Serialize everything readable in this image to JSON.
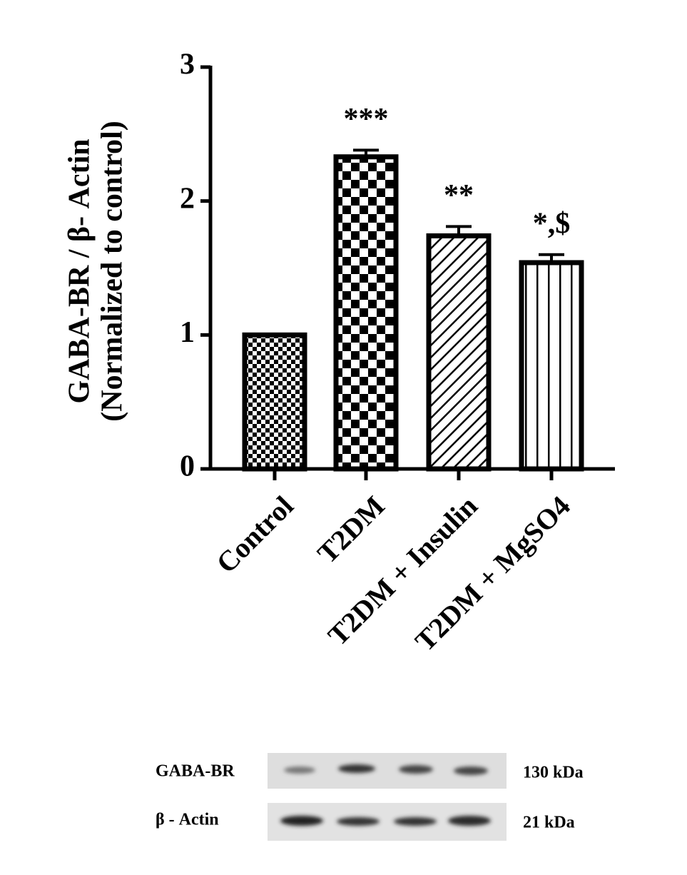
{
  "chart_data": {
    "type": "bar",
    "y_label": [
      "GABA-BR / β- Actin",
      "(Normalized to control)"
    ],
    "categories": [
      "Control",
      "T2DM",
      "T2DM + Insulin",
      "T2DM + MgSO4"
    ],
    "values": [
      1.0,
      2.33,
      1.74,
      1.54
    ],
    "errors": [
      0,
      0.05,
      0.07,
      0.06
    ],
    "annotations": [
      null,
      "***",
      "**",
      "*,$"
    ],
    "color": "#000000",
    "ylim": [
      0,
      3
    ],
    "yticks": [
      0,
      1,
      2,
      3
    ],
    "grid": false
  },
  "blot": {
    "rows": [
      {
        "label": "GABA-BR",
        "size": "130 kDa"
      },
      {
        "label": "β - Actin",
        "size": "21 kDa"
      }
    ]
  }
}
